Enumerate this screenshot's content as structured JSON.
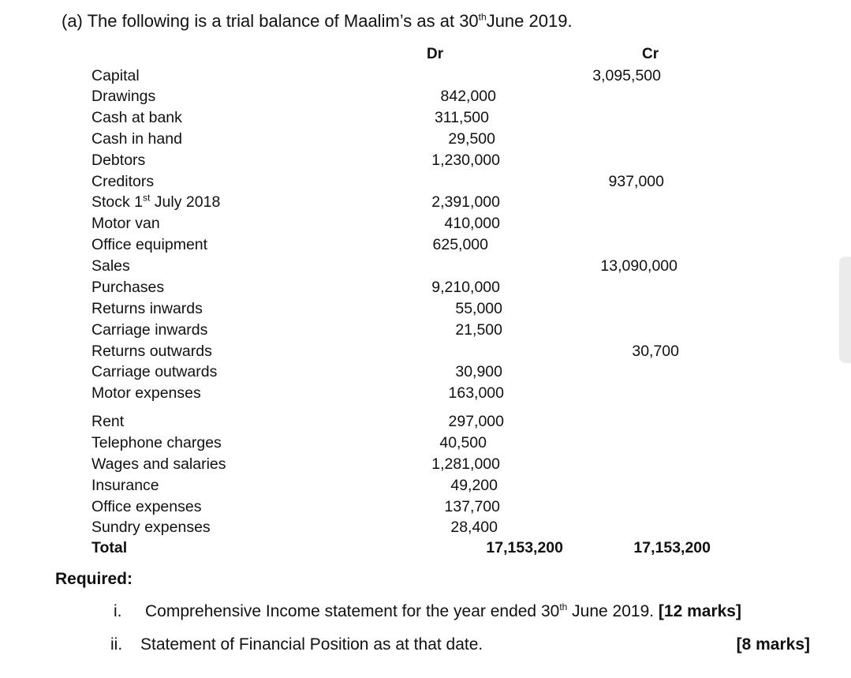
{
  "heading": {
    "prefix": "(a) The following is a trial balance of Maalim’s as at 30",
    "sup": "th",
    "suffix": "June 2019."
  },
  "columns": {
    "dr": "Dr",
    "cr": "Cr"
  },
  "rows": [
    {
      "label": "Capital",
      "dr": "",
      "cr": "3,095,500"
    },
    {
      "label": "Drawings",
      "dr": "842,000",
      "cr": ""
    },
    {
      "label": "Cash at bank",
      "dr": "311,500",
      "cr": ""
    },
    {
      "label": "Cash in hand",
      "dr": "29,500",
      "cr": ""
    },
    {
      "label": "Debtors",
      "dr": "1,230,000",
      "cr": ""
    },
    {
      "label": "Creditors",
      "dr": "",
      "cr": "937,000"
    },
    {
      "label_prefix": "Stock 1",
      "label_sup": "st",
      "label_suffix": " July 2018",
      "dr": "2,391,000",
      "cr": ""
    },
    {
      "label": "Motor van",
      "dr": "410,000",
      "cr": ""
    },
    {
      "label": "Office equipment",
      "dr": "625,000",
      "cr": ""
    },
    {
      "label": "Sales",
      "dr": "",
      "cr": "13,090,000"
    },
    {
      "label": "Purchases",
      "dr": "9,210,000",
      "cr": ""
    },
    {
      "label": "Returns inwards",
      "dr": "55,000",
      "cr": ""
    },
    {
      "label": "Carriage inwards",
      "dr": "21,500",
      "cr": ""
    },
    {
      "label": "Returns outwards",
      "dr": "",
      "cr": "30,700"
    },
    {
      "label": "Carriage outwards",
      "dr": "30,900",
      "cr": ""
    },
    {
      "label": "Motor expenses",
      "dr": "163,000",
      "cr": ""
    },
    {
      "label": "Rent",
      "dr": "297,000",
      "cr": ""
    },
    {
      "label": "Telephone charges",
      "dr": "40,500",
      "cr": ""
    },
    {
      "label": "Wages and salaries",
      "dr": "1,281,000",
      "cr": ""
    },
    {
      "label": "Insurance",
      "dr": "49,200",
      "cr": ""
    },
    {
      "label": "Office expenses",
      "dr": "137,700",
      "cr": ""
    },
    {
      "label": "Sundry expenses",
      "dr": "28,400",
      "cr": ""
    }
  ],
  "total": {
    "label": "Total",
    "dr": "17,153,200",
    "cr": "17,153,200"
  },
  "required": {
    "title": "Required:",
    "items": [
      {
        "numeral": "i.",
        "text_prefix": "Comprehensive Income statement for the year ended 30",
        "sup": "th",
        "text_suffix": " June 2019. ",
        "marks": "[12 marks]"
      },
      {
        "numeral": "ii.",
        "text": "Statement of Financial Position as at that date.",
        "marks": "[8 marks]"
      }
    ]
  }
}
